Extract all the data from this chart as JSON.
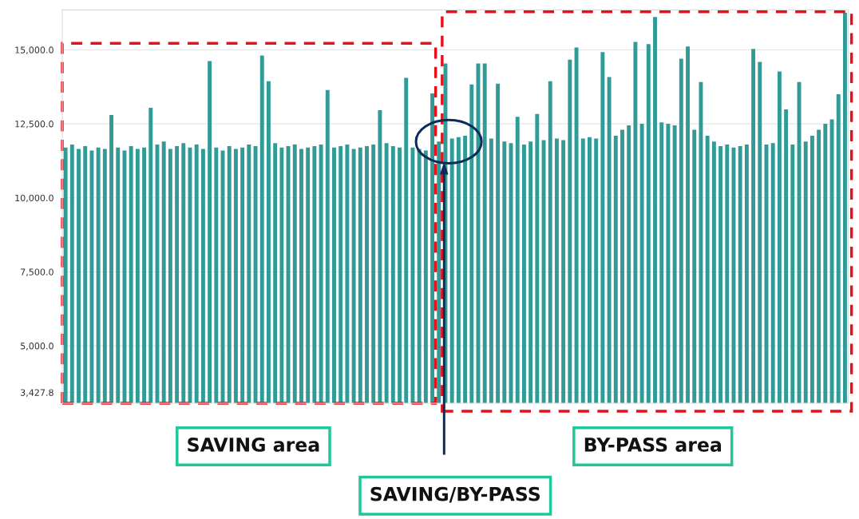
{
  "chart_data": {
    "type": "bar",
    "categories": [
      null,
      null,
      null,
      null,
      null,
      null,
      null,
      null,
      null,
      null,
      null,
      null,
      null,
      null,
      null,
      null,
      null,
      null,
      null,
      null,
      null,
      null,
      null,
      null,
      null,
      null,
      null,
      null,
      null,
      null,
      null,
      null,
      null,
      null,
      null,
      null,
      null,
      null,
      null,
      null,
      null,
      null,
      null,
      null,
      null,
      null,
      null,
      null,
      null,
      null,
      null,
      null,
      null,
      null,
      null,
      null,
      null,
      null,
      null,
      null,
      null,
      null,
      null,
      null,
      null,
      null,
      null,
      null,
      null,
      null,
      null,
      null,
      null,
      null,
      null,
      null,
      null,
      null,
      null,
      null,
      null,
      null,
      null,
      null,
      null,
      null,
      null,
      null,
      null,
      null,
      null,
      null,
      null,
      null,
      null,
      null,
      null,
      null,
      null,
      null,
      null,
      null,
      null,
      null,
      null,
      null,
      null,
      null,
      null,
      null,
      null,
      null,
      null,
      null,
      null,
      null,
      null,
      null,
      null,
      null
    ],
    "values": [
      11700,
      11800,
      11650,
      11750,
      11600,
      11700,
      11650,
      12800,
      11700,
      11600,
      11750,
      11650,
      11700,
      13040,
      11800,
      11900,
      11650,
      11750,
      11850,
      11700,
      11800,
      11650,
      14620,
      11700,
      11600,
      11750,
      11650,
      11700,
      11800,
      11750,
      14810,
      13940,
      11850,
      11700,
      11750,
      11800,
      11650,
      11700,
      11750,
      11800,
      13640,
      11700,
      11750,
      11800,
      11650,
      11700,
      11750,
      11800,
      12960,
      11850,
      11750,
      11700,
      14050,
      11700,
      11650,
      11600,
      13530,
      11900,
      14540,
      12000,
      12050,
      12100,
      13830,
      14540,
      14540,
      12000,
      13860,
      11900,
      11850,
      12740,
      11800,
      11900,
      12830,
      11950,
      13940,
      12000,
      11950,
      14670,
      15080,
      12000,
      12050,
      12000,
      14920,
      14080,
      12100,
      12300,
      12450,
      15270,
      12500,
      15190,
      16110,
      12550,
      12500,
      12450,
      14700,
      15110,
      12300,
      13910,
      12100,
      11900,
      11750,
      11800,
      11700,
      11750,
      11800,
      15030,
      14590,
      11800,
      11850,
      14270,
      12990,
      11800,
      13910,
      11900,
      12100,
      12300,
      12500,
      12650,
      13500,
      16250
    ],
    "color": "#319b97",
    "ylim": [
      3060,
      16350
    ],
    "yticks": [
      {
        "value": 3427.8,
        "label": "3,427.8"
      },
      {
        "value": 5000,
        "label": "5,000.0"
      },
      {
        "value": 7500,
        "label": "7,500.0"
      },
      {
        "value": 10000,
        "label": "10,000.0"
      },
      {
        "value": 12500,
        "label": "12,500.0"
      },
      {
        "value": 15000,
        "label": "15,000.0"
      }
    ],
    "grid": "y",
    "annotations": [
      "SAVING area",
      "BY-PASS area",
      "SAVING/BY-PASS"
    ]
  }
}
